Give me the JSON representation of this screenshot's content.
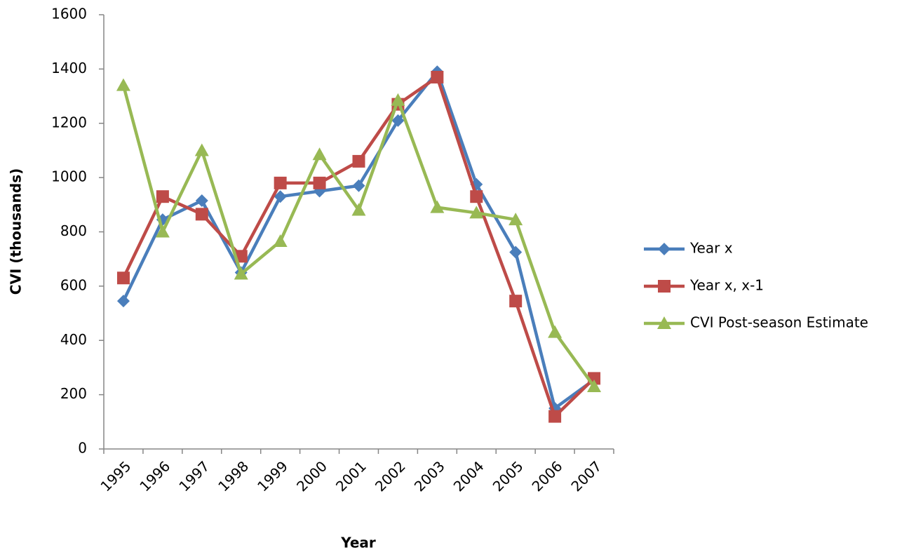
{
  "chart_data": {
    "type": "line",
    "x_label": "Year",
    "y_label": "CVI (thousands)",
    "categories": [
      "1995",
      "1996",
      "1997",
      "1998",
      "1999",
      "2000",
      "2001",
      "2002",
      "2003",
      "2004",
      "2005",
      "2006",
      "2007"
    ],
    "series": [
      {
        "name": "Year x",
        "color": "#4a7ebb",
        "marker": "diamond",
        "values": [
          545,
          845,
          915,
          650,
          930,
          950,
          970,
          1210,
          1390,
          975,
          725,
          150,
          255
        ]
      },
      {
        "name": "Year x, x-1",
        "color": "#be4b48",
        "marker": "square",
        "values": [
          630,
          930,
          865,
          710,
          980,
          980,
          1060,
          1270,
          1370,
          930,
          545,
          120,
          260
        ]
      },
      {
        "name": "CVI Post-season Estimate",
        "color": "#98b954",
        "marker": "triangle",
        "values": [
          1340,
          800,
          1100,
          645,
          765,
          1085,
          880,
          1285,
          890,
          870,
          845,
          430,
          230
        ]
      }
    ],
    "ylim": [
      0,
      1600
    ],
    "yticks": [
      0,
      200,
      400,
      600,
      800,
      1000,
      1200,
      1400,
      1600
    ],
    "grid": false,
    "legend": "right"
  }
}
